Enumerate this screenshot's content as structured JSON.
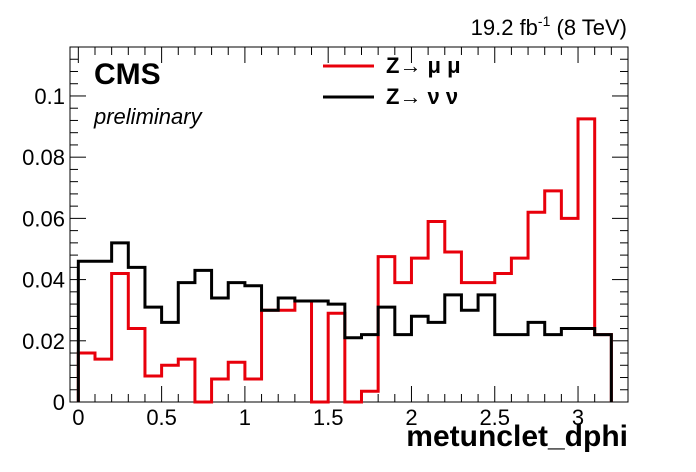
{
  "chart_data": {
    "type": "line",
    "step": true,
    "title": "",
    "luminosity": {
      "value": "19.2 fb",
      "exponent": "-1",
      "energy": " (8 TeV)"
    },
    "experiment": "CMS",
    "status": "preliminary",
    "xlabel": "metunclet_dphi",
    "ylabel": "",
    "xlim": [
      -0.05,
      3.3
    ],
    "ylim": [
      0,
      0.116
    ],
    "x_bin_width": 0.1,
    "x_bin_start": 0.0,
    "x_ticks": [
      {
        "value": 0,
        "label": "0"
      },
      {
        "value": 0.5,
        "label": "0.5"
      },
      {
        "value": 1,
        "label": "1"
      },
      {
        "value": 1.5,
        "label": "1.5"
      },
      {
        "value": 2,
        "label": "2"
      },
      {
        "value": 2.5,
        "label": "2.5"
      },
      {
        "value": 3,
        "label": "3"
      }
    ],
    "y_ticks": [
      {
        "value": 0,
        "label": "0"
      },
      {
        "value": 0.02,
        "label": "0.02"
      },
      {
        "value": 0.04,
        "label": "0.04"
      },
      {
        "value": 0.06,
        "label": "0.06"
      },
      {
        "value": 0.08,
        "label": "0.08"
      },
      {
        "value": 0.1,
        "label": "0.1"
      }
    ],
    "grid": false,
    "legend_position": "top-center",
    "series": [
      {
        "name": "Z→ μ μ",
        "color": "#e8000b",
        "values": [
          0.016,
          0.014,
          0.042,
          0.024,
          0.0085,
          0.012,
          0.014,
          0.0,
          0.0075,
          0.013,
          0.0075,
          0.03,
          0.03,
          0.033,
          0.0,
          0.029,
          0.0,
          0.0035,
          0.0475,
          0.039,
          0.047,
          0.059,
          0.049,
          0.039,
          0.039,
          0.042,
          0.047,
          0.062,
          0.069,
          0.06,
          0.0925,
          0.022
        ]
      },
      {
        "name": "Z→ ν ν",
        "color": "#000000",
        "values": [
          0.046,
          0.046,
          0.052,
          0.044,
          0.031,
          0.026,
          0.039,
          0.043,
          0.034,
          0.039,
          0.038,
          0.03,
          0.034,
          0.033,
          0.033,
          0.032,
          0.021,
          0.022,
          0.031,
          0.022,
          0.028,
          0.026,
          0.035,
          0.03,
          0.035,
          0.022,
          0.022,
          0.026,
          0.022,
          0.024,
          0.024,
          0.022
        ]
      }
    ]
  }
}
